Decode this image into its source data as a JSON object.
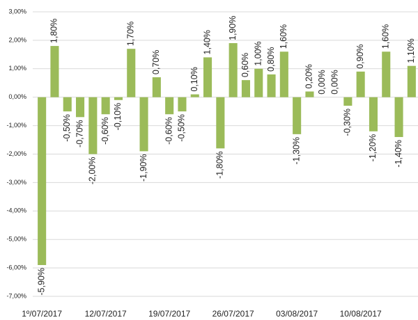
{
  "chart_data": {
    "type": "bar",
    "categories": [
      "1º/07/2017",
      null,
      null,
      null,
      null,
      "12/07/2017",
      null,
      null,
      null,
      null,
      "19/07/2017",
      null,
      null,
      null,
      null,
      "26/07/2017",
      null,
      null,
      null,
      null,
      "03/08/2017",
      null,
      null,
      null,
      null,
      "10/08/2017",
      null,
      null,
      null,
      null
    ],
    "values": [
      -5.9,
      1.8,
      -0.5,
      -0.7,
      -2.0,
      -0.6,
      -0.1,
      1.7,
      -1.9,
      0.7,
      -0.6,
      -0.5,
      0.1,
      1.4,
      -1.8,
      1.9,
      0.6,
      1.0,
      0.8,
      1.6,
      -1.3,
      0.2,
      0.0,
      0.0,
      -0.3,
      0.9,
      -1.2,
      1.6,
      -1.4,
      1.1
    ],
    "value_labels": [
      "-5,90%",
      "1,80%",
      "-0,50%",
      "-0,70%",
      "-2,00%",
      "-0,60%",
      "-0,10%",
      "1,70%",
      "-1,90%",
      "0,70%",
      "-0,60%",
      "-0,50%",
      "0,10%",
      "1,40%",
      "-1,80%",
      "1,90%",
      "0,60%",
      "1,00%",
      "0,80%",
      "1,60%",
      "-1,30%",
      "0,20%",
      "0,00%",
      "0,00%",
      "-0,30%",
      "0,90%",
      "-1,20%",
      "1,60%",
      "-1,40%",
      "1,10%"
    ],
    "color": "#9bbb59",
    "ylim": [
      -7,
      3
    ],
    "yticks": [
      {
        "value": -7,
        "label": "-7,00%"
      },
      {
        "value": -6,
        "label": "-6,00%"
      },
      {
        "value": -5,
        "label": "-5,00%"
      },
      {
        "value": -4,
        "label": "-4,00%"
      },
      {
        "value": -3,
        "label": "-3,00%"
      },
      {
        "value": -2,
        "label": "-2,00%"
      },
      {
        "value": -1,
        "label": "-1,00%"
      },
      {
        "value": 0,
        "label": "0,00%"
      },
      {
        "value": 1,
        "label": "1,00%"
      },
      {
        "value": 2,
        "label": "2,00%"
      },
      {
        "value": 3,
        "label": "3,00%"
      }
    ],
    "grid": true
  }
}
